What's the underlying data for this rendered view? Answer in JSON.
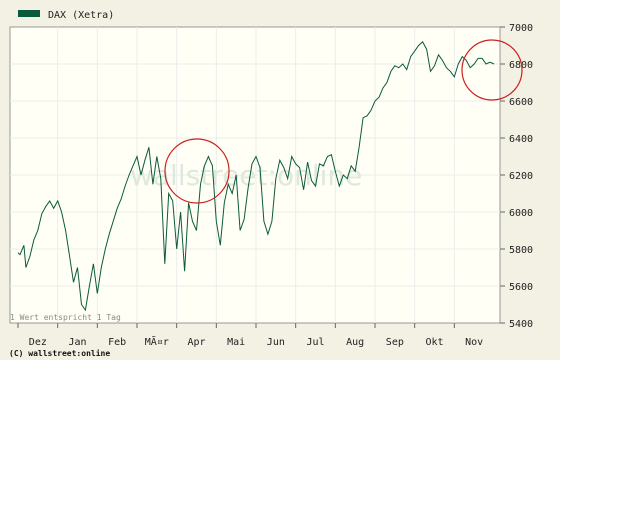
{
  "chart_data": {
    "type": "line",
    "title": "",
    "xlabel": "",
    "ylabel": "",
    "legend": {
      "label": "DAX (Xetra)",
      "position": "top-left",
      "color": "#0b5a3c"
    },
    "ylim": [
      5400,
      7000
    ],
    "yticks": [
      5400,
      5600,
      5800,
      6000,
      6200,
      6400,
      6600,
      6800,
      7000
    ],
    "y_axis_side": "right",
    "grid": true,
    "x_month_labels": [
      "Dez",
      "Jan",
      "Feb",
      "MÃ¤r",
      "Apr",
      "Mai",
      "Jun",
      "Jul",
      "Aug",
      "Sep",
      "Okt",
      "Nov"
    ],
    "x_days_max": 240,
    "series": [
      {
        "name": "DAX (Xetra)",
        "color": "#0b5a3c",
        "x": [
          0,
          1,
          3,
          4,
          6,
          8,
          10,
          12,
          14,
          16,
          18,
          20,
          22,
          24,
          26,
          28,
          30,
          32,
          34,
          36,
          38,
          40,
          42,
          44,
          46,
          48,
          50,
          52,
          54,
          56,
          58,
          60,
          62,
          64,
          66,
          68,
          70,
          72,
          74,
          76,
          78,
          80,
          82,
          84,
          86,
          88,
          90,
          92,
          94,
          96,
          98,
          100,
          102,
          104,
          106,
          108,
          110,
          112,
          114,
          116,
          118,
          120,
          122,
          124,
          126,
          128,
          130,
          132,
          134,
          136,
          138,
          140,
          142,
          144,
          146,
          148,
          150,
          152,
          154,
          156,
          158,
          160,
          162,
          164,
          166,
          168,
          170,
          172,
          174,
          176,
          178,
          180,
          182,
          184,
          186,
          188,
          190,
          192,
          194,
          196,
          198,
          200,
          202,
          204,
          206,
          208,
          210,
          212,
          214,
          216,
          218,
          220,
          222,
          224,
          226,
          228,
          230,
          232,
          234,
          236,
          238,
          240
        ],
        "y": [
          5780,
          5770,
          5820,
          5700,
          5760,
          5850,
          5900,
          5990,
          6030,
          6060,
          6020,
          6060,
          6000,
          5900,
          5760,
          5620,
          5700,
          5500,
          5470,
          5600,
          5720,
          5560,
          5700,
          5800,
          5880,
          5950,
          6020,
          6070,
          6140,
          6200,
          6250,
          6300,
          6200,
          6280,
          6350,
          6150,
          6300,
          6180,
          5720,
          6100,
          6060,
          5800,
          6000,
          5680,
          6050,
          5950,
          5900,
          6150,
          6250,
          6300,
          6250,
          5950,
          5820,
          6050,
          6150,
          6100,
          6200,
          5900,
          5960,
          6130,
          6260,
          6300,
          6240,
          5950,
          5880,
          5950,
          6180,
          6280,
          6240,
          6180,
          6300,
          6260,
          6240,
          6120,
          6270,
          6170,
          6140,
          6260,
          6250,
          6300,
          6310,
          6220,
          6140,
          6200,
          6180,
          6250,
          6220,
          6350,
          6510,
          6520,
          6550,
          6600,
          6620,
          6670,
          6700,
          6760,
          6790,
          6780,
          6800,
          6770,
          6840,
          6870,
          6900,
          6920,
          6880,
          6760,
          6790,
          6850,
          6820,
          6780,
          6760,
          6730,
          6800,
          6840,
          6820,
          6780,
          6800,
          6830,
          6830,
          6800,
          6810,
          6800
        ]
      }
    ],
    "annotations": {
      "wert_note": "1 Wert entspricht 1 Tag",
      "watermark": "wallstreet:online",
      "copyright": "(C) wallstreet:online",
      "circles": [
        "around Apr peak",
        "around Nov peak"
      ]
    }
  }
}
